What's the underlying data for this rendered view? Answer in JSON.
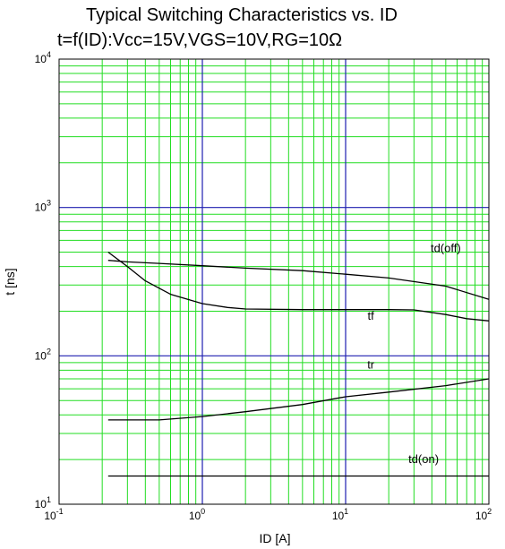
{
  "chart_data": {
    "type": "line",
    "title": "Typical Switching Characteristics vs. ID",
    "subtitle": "t=f(ID):Vcc=15V,VGS=10V,RG=10Ω",
    "xlabel": "ID [A]",
    "ylabel": "t [ns]",
    "xscale": "log",
    "yscale": "log",
    "xlim": [
      0.1,
      100
    ],
    "ylim": [
      10,
      10000
    ],
    "grid": true,
    "legend": "none",
    "x_ticks": [
      {
        "base": "10",
        "exp": "-1",
        "value": 0.1
      },
      {
        "base": "10",
        "exp": "0",
        "value": 1
      },
      {
        "base": "10",
        "exp": "1",
        "value": 10
      },
      {
        "base": "10",
        "exp": "2",
        "value": 100
      }
    ],
    "y_ticks": [
      {
        "base": "10",
        "exp": "1",
        "value": 10
      },
      {
        "base": "10",
        "exp": "2",
        "value": 100
      },
      {
        "base": "10",
        "exp": "3",
        "value": 1000
      },
      {
        "base": "10",
        "exp": "4",
        "value": 10000
      }
    ],
    "series": [
      {
        "name": "td(off)",
        "label_at": [
          50,
          500
        ],
        "x": [
          0.22,
          0.3,
          0.5,
          1,
          2,
          5,
          10,
          20,
          50,
          100
        ],
        "y": [
          440,
          430,
          420,
          405,
          390,
          375,
          355,
          335,
          295,
          240
        ]
      },
      {
        "name": "tf",
        "label_at": [
          15,
          175
        ],
        "x": [
          0.22,
          0.3,
          0.4,
          0.6,
          1,
          1.5,
          2,
          5,
          10,
          20,
          30,
          50,
          70,
          100
        ],
        "y": [
          500,
          400,
          320,
          260,
          225,
          212,
          207,
          205,
          205,
          205,
          204,
          190,
          178,
          172
        ]
      },
      {
        "name": "tr",
        "label_at": [
          15,
          82
        ],
        "x": [
          0.22,
          0.5,
          1,
          2,
          5,
          10,
          20,
          50,
          100
        ],
        "y": [
          37,
          37,
          39,
          42,
          47,
          53,
          57,
          63,
          70
        ]
      },
      {
        "name": "td(on)",
        "label_at": [
          35,
          19
        ],
        "x": [
          0.22,
          1,
          10,
          100
        ],
        "y": [
          15.5,
          15.5,
          15.5,
          15.5
        ]
      }
    ],
    "colors": {
      "minor_grid": "#22dd22",
      "major_grid": "#1f1fb0",
      "line": "#000000"
    }
  }
}
